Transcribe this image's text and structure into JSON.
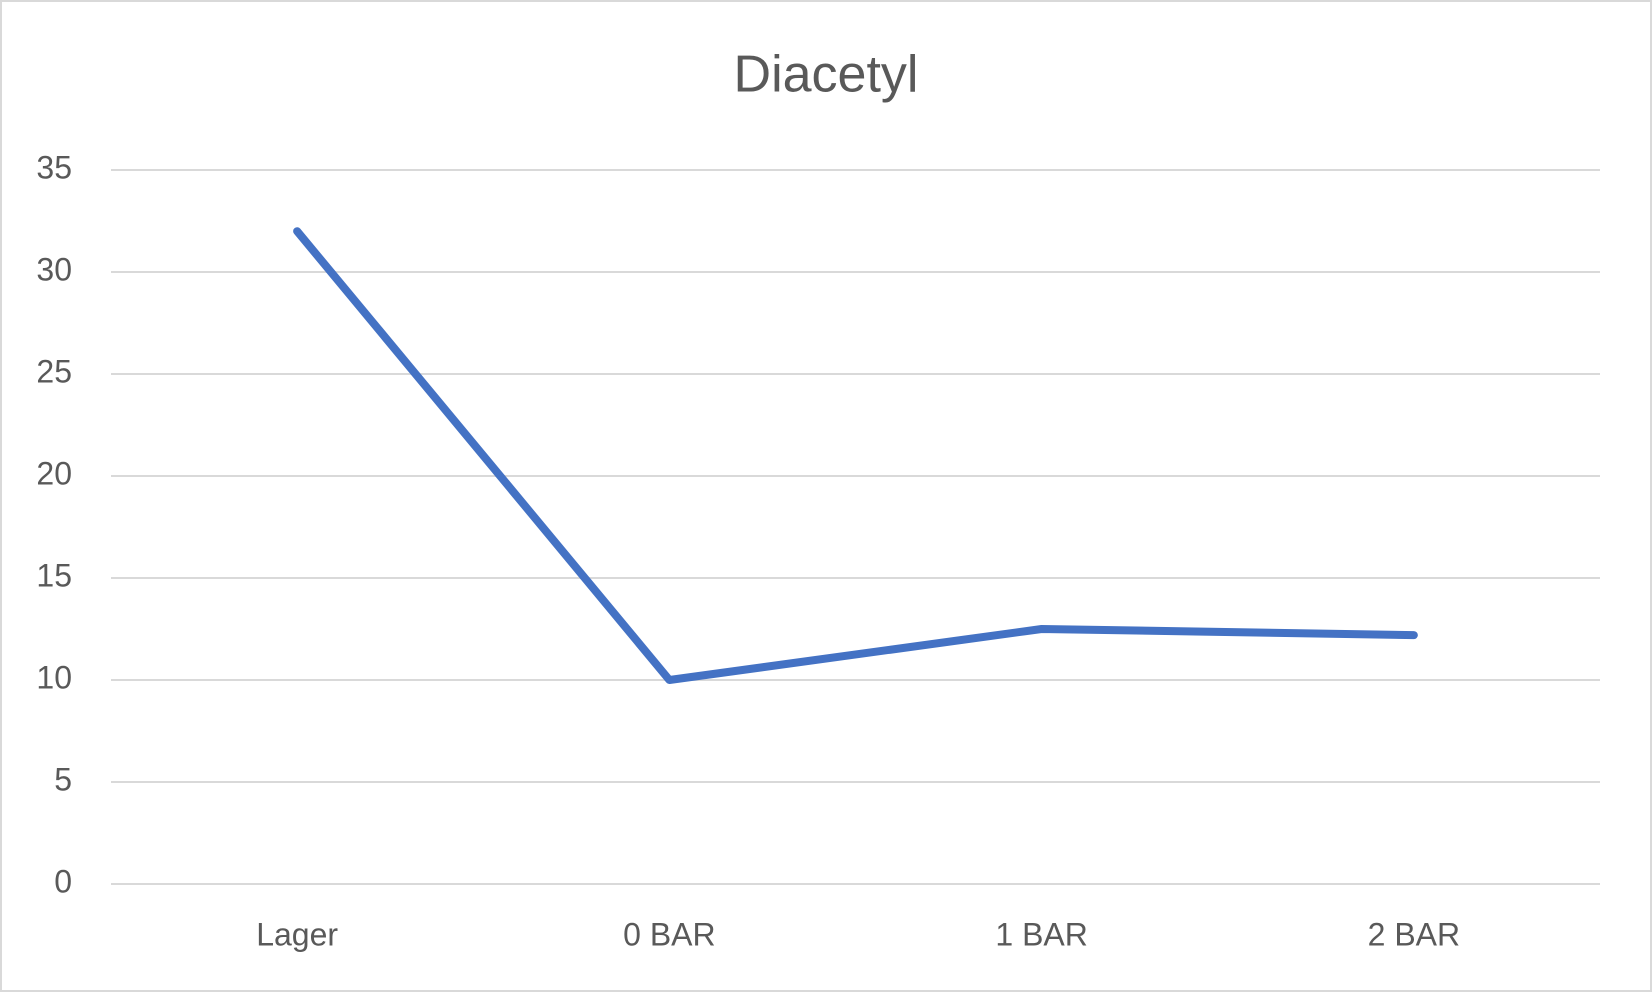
{
  "chart_data": {
    "type": "line",
    "title": "Diacetyl",
    "categories": [
      "Lager",
      "0 BAR",
      "1 BAR",
      "2 BAR"
    ],
    "series": [
      {
        "name": "Diacetyl",
        "color": "#4472c4",
        "values": [
          32,
          10,
          12.5,
          12.2
        ]
      }
    ],
    "ylim": [
      0,
      35
    ],
    "yticks": [
      0,
      5,
      10,
      15,
      20,
      25,
      30,
      35
    ],
    "grid": true
  }
}
